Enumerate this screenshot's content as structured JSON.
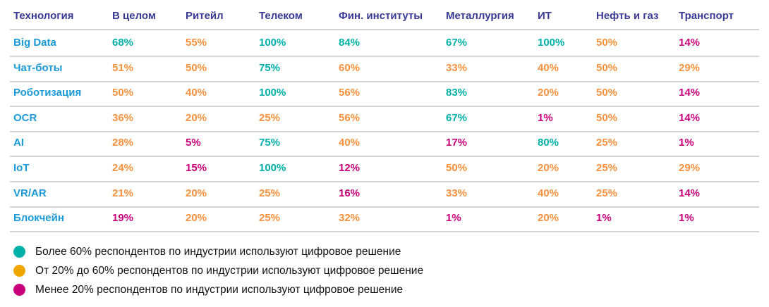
{
  "colors": {
    "high": "#00b0a8",
    "mid": "#f7913d",
    "low": "#c8007a",
    "mid_dot": "#f0a800",
    "header": "#3a3a95",
    "label": "#1a9ad6"
  },
  "chart_data": {
    "type": "table",
    "columns": [
      "Технология",
      "В целом",
      "Ритейл",
      "Телеком",
      "Фин. институты",
      "Металлургия",
      "ИТ",
      "Нефть и газ",
      "Транспорт"
    ],
    "rows": [
      {
        "label": "Big Data",
        "values": [
          "68%",
          "55%",
          "100%",
          "84%",
          "67%",
          "100%",
          "50%",
          "14%"
        ]
      },
      {
        "label": "Чат-боты",
        "values": [
          "51%",
          "50%",
          "75%",
          "60%",
          "33%",
          "40%",
          "50%",
          "29%"
        ]
      },
      {
        "label": "Роботизация",
        "values": [
          "50%",
          "40%",
          "100%",
          "56%",
          "83%",
          "20%",
          "50%",
          "14%"
        ]
      },
      {
        "label": "OCR",
        "values": [
          "36%",
          "20%",
          "25%",
          "56%",
          "67%",
          "1%",
          "50%",
          "14%"
        ]
      },
      {
        "label": "AI",
        "values": [
          "28%",
          "5%",
          "75%",
          "40%",
          "17%",
          "80%",
          "25%",
          "1%"
        ]
      },
      {
        "label": "IoT",
        "values": [
          "24%",
          "15%",
          "100%",
          "12%",
          "50%",
          "20%",
          "25%",
          "29%"
        ]
      },
      {
        "label": "VR/AR",
        "values": [
          "21%",
          "20%",
          "25%",
          "16%",
          "33%",
          "40%",
          "25%",
          "14%"
        ]
      },
      {
        "label": "Блокчейн",
        "values": [
          "19%",
          "20%",
          "25%",
          "32%",
          "1%",
          "20%",
          "1%",
          "1%"
        ]
      }
    ],
    "legend": [
      {
        "level": "high",
        "text": "Более 60% респондентов по индустрии используют цифровое решение"
      },
      {
        "level": "mid",
        "text": "От 20% до 60% респондентов по индустрии используют цифровое решение"
      },
      {
        "level": "low",
        "text": "Менее 20% респондентов по индустрии используют цифровое решение"
      }
    ]
  }
}
